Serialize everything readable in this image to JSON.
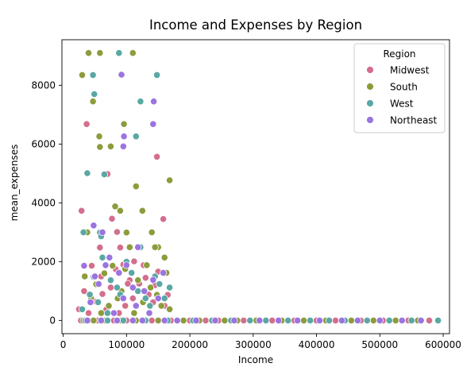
{
  "chart_data": {
    "type": "scatter",
    "title": "Income and Expenses by Region",
    "xlabel": "Income",
    "ylabel": "mean_expenses",
    "xlim": [
      -2000,
      610000
    ],
    "ylim": [
      -450,
      9550
    ],
    "xticks": [
      0,
      100000,
      200000,
      300000,
      400000,
      500000,
      600000
    ],
    "xtick_labels": [
      "0",
      "100000",
      "200000",
      "300000",
      "400000",
      "500000",
      "600000"
    ],
    "yticks": [
      0,
      2000,
      4000,
      6000,
      8000
    ],
    "ytick_labels": [
      "0",
      "2000",
      "4000",
      "6000",
      "8000"
    ],
    "grid": false,
    "legend": {
      "title": "Region",
      "placement": "top-right"
    },
    "series": [
      {
        "name": "Midwest",
        "color": "#d46e8c",
        "points": [
          [
            29000,
            3730
          ],
          [
            37000,
            6680
          ],
          [
            70000,
            4980
          ],
          [
            148000,
            5570
          ],
          [
            158000,
            3450
          ],
          [
            77000,
            3460
          ],
          [
            112000,
            2010
          ],
          [
            33000,
            1000
          ],
          [
            45000,
            1860
          ],
          [
            60000,
            1500
          ],
          [
            75000,
            1120
          ],
          [
            90000,
            2480
          ],
          [
            105000,
            1370
          ],
          [
            120000,
            1250
          ],
          [
            135000,
            880
          ],
          [
            150000,
            1660
          ],
          [
            165000,
            870
          ],
          [
            52000,
            640
          ],
          [
            68000,
            370
          ],
          [
            83000,
            1740
          ],
          [
            98000,
            500
          ],
          [
            127000,
            1880
          ],
          [
            142000,
            620
          ],
          [
            58000,
            2480
          ],
          [
            85000,
            3010
          ],
          [
            25000,
            380
          ],
          [
            40000,
            250
          ],
          [
            110000,
            750
          ],
          [
            130000,
            1450
          ],
          [
            95000,
            1900
          ],
          [
            145000,
            1200
          ],
          [
            160000,
            500
          ],
          [
            62000,
            900
          ],
          [
            88000,
            250
          ],
          [
            102000,
            1250
          ],
          [
            28000,
            0
          ],
          [
            40000,
            0
          ],
          [
            55000,
            0
          ],
          [
            80000,
            0
          ],
          [
            100000,
            0
          ],
          [
            140000,
            0
          ],
          [
            170000,
            0
          ],
          [
            200000,
            0
          ],
          [
            225000,
            0
          ],
          [
            245000,
            0
          ],
          [
            285000,
            0
          ],
          [
            330000,
            0
          ],
          [
            365000,
            0
          ],
          [
            400000,
            0
          ],
          [
            430000,
            0
          ],
          [
            470000,
            0
          ],
          [
            505000,
            0
          ],
          [
            545000,
            0
          ],
          [
            578000,
            0
          ]
        ]
      },
      {
        "name": "South",
        "color": "#8c9c3c",
        "points": [
          [
            30000,
            8350
          ],
          [
            40000,
            9100
          ],
          [
            47000,
            7450
          ],
          [
            58000,
            9100
          ],
          [
            110000,
            9100
          ],
          [
            96000,
            6680
          ],
          [
            57000,
            6260
          ],
          [
            58000,
            5900
          ],
          [
            75000,
            5920
          ],
          [
            115000,
            4560
          ],
          [
            168000,
            4770
          ],
          [
            82000,
            3880
          ],
          [
            90000,
            3730
          ],
          [
            125000,
            3730
          ],
          [
            140000,
            3000
          ],
          [
            100000,
            2990
          ],
          [
            150000,
            2490
          ],
          [
            160000,
            2140
          ],
          [
            38000,
            3000
          ],
          [
            52000,
            1230
          ],
          [
            65000,
            1600
          ],
          [
            78000,
            1860
          ],
          [
            92000,
            1000
          ],
          [
            105000,
            2490
          ],
          [
            118000,
            1370
          ],
          [
            132000,
            1880
          ],
          [
            148000,
            870
          ],
          [
            163000,
            1620
          ],
          [
            72000,
            500
          ],
          [
            86000,
            750
          ],
          [
            112000,
            250
          ],
          [
            138000,
            1120
          ],
          [
            155000,
            500
          ],
          [
            44000,
            750
          ],
          [
            60000,
            250
          ],
          [
            126000,
            620
          ],
          [
            168000,
            380
          ],
          [
            34000,
            1500
          ],
          [
            98000,
            1750
          ],
          [
            145000,
            2490
          ],
          [
            32000,
            0
          ],
          [
            48000,
            0
          ],
          [
            65000,
            0
          ],
          [
            90000,
            0
          ],
          [
            115000,
            0
          ],
          [
            150000,
            0
          ],
          [
            190000,
            0
          ],
          [
            215000,
            0
          ],
          [
            255000,
            0
          ],
          [
            275000,
            0
          ],
          [
            305000,
            0
          ],
          [
            345000,
            0
          ],
          [
            380000,
            0
          ],
          [
            415000,
            0
          ],
          [
            455000,
            0
          ],
          [
            490000,
            0
          ],
          [
            525000,
            0
          ],
          [
            560000,
            0
          ]
        ]
      },
      {
        "name": "West",
        "color": "#5aa8a4",
        "points": [
          [
            88000,
            9100
          ],
          [
            148000,
            8350
          ],
          [
            47000,
            8350
          ],
          [
            49000,
            7700
          ],
          [
            122000,
            7450
          ],
          [
            115000,
            6260
          ],
          [
            38000,
            5010
          ],
          [
            65000,
            4970
          ],
          [
            58000,
            2990
          ],
          [
            32000,
            3000
          ],
          [
            60000,
            2860
          ],
          [
            48000,
            1480
          ],
          [
            62000,
            2140
          ],
          [
            75000,
            1370
          ],
          [
            90000,
            880
          ],
          [
            108000,
            1620
          ],
          [
            122000,
            2490
          ],
          [
            137000,
            500
          ],
          [
            152000,
            1240
          ],
          [
            168000,
            1120
          ],
          [
            55000,
            620
          ],
          [
            70000,
            250
          ],
          [
            85000,
            1120
          ],
          [
            100000,
            2000
          ],
          [
            130000,
            750
          ],
          [
            145000,
            1500
          ],
          [
            30000,
            380
          ],
          [
            42000,
            880
          ],
          [
            118000,
            1000
          ],
          [
            160000,
            750
          ],
          [
            35000,
            0
          ],
          [
            70000,
            0
          ],
          [
            95000,
            0
          ],
          [
            130000,
            0
          ],
          [
            165000,
            0
          ],
          [
            205000,
            0
          ],
          [
            235000,
            0
          ],
          [
            265000,
            0
          ],
          [
            295000,
            0
          ],
          [
            320000,
            0
          ],
          [
            355000,
            0
          ],
          [
            390000,
            0
          ],
          [
            420000,
            0
          ],
          [
            445000,
            0
          ],
          [
            480000,
            0
          ],
          [
            515000,
            0
          ],
          [
            550000,
            0
          ],
          [
            592000,
            0
          ]
        ]
      },
      {
        "name": "Northeast",
        "color": "#9b74e0",
        "points": [
          [
            92000,
            8360
          ],
          [
            143000,
            7450
          ],
          [
            142000,
            6680
          ],
          [
            96000,
            6260
          ],
          [
            95000,
            5920
          ],
          [
            48000,
            3230
          ],
          [
            62000,
            3000
          ],
          [
            118000,
            2490
          ],
          [
            33000,
            1860
          ],
          [
            56000,
            1240
          ],
          [
            73000,
            2140
          ],
          [
            88000,
            1620
          ],
          [
            100000,
            1880
          ],
          [
            115000,
            500
          ],
          [
            128000,
            1000
          ],
          [
            142000,
            1380
          ],
          [
            158000,
            1620
          ],
          [
            43000,
            620
          ],
          [
            67000,
            1880
          ],
          [
            80000,
            250
          ],
          [
            95000,
            750
          ],
          [
            110000,
            1120
          ],
          [
            136000,
            250
          ],
          [
            50000,
            1500
          ],
          [
            150000,
            750
          ],
          [
            38000,
            0
          ],
          [
            60000,
            0
          ],
          [
            85000,
            0
          ],
          [
            110000,
            0
          ],
          [
            125000,
            0
          ],
          [
            160000,
            0
          ],
          [
            180000,
            0
          ],
          [
            210000,
            0
          ],
          [
            240000,
            0
          ],
          [
            270000,
            0
          ],
          [
            310000,
            0
          ],
          [
            340000,
            0
          ],
          [
            370000,
            0
          ],
          [
            405000,
            0
          ],
          [
            440000,
            0
          ],
          [
            465000,
            0
          ],
          [
            500000,
            0
          ],
          [
            535000,
            0
          ],
          [
            565000,
            0
          ]
        ]
      }
    ]
  }
}
